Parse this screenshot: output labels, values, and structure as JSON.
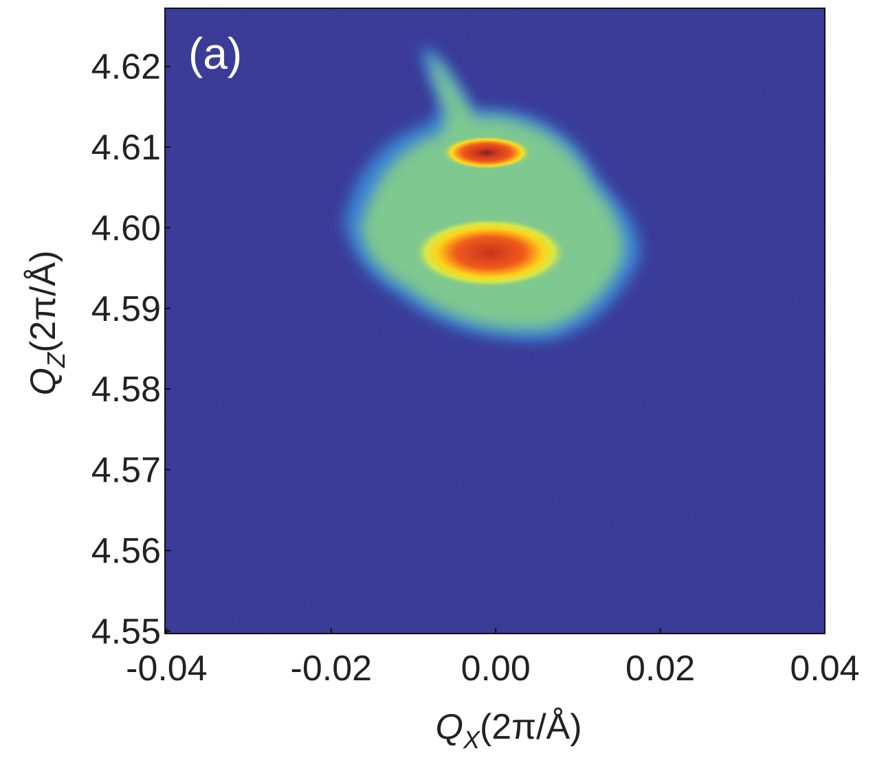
{
  "chart_data": {
    "type": "heatmap",
    "panel_label": "(a)",
    "xlabel": {
      "symbol": "Q",
      "sub": "X",
      "unit": "(2π/Å)"
    },
    "ylabel": {
      "symbol": "Q",
      "sub": "Z",
      "unit": "(2π/Å)"
    },
    "xlim": [
      -0.0402,
      0.04
    ],
    "ylim": [
      4.5497,
      4.6272
    ],
    "xticks": [
      -0.04,
      -0.02,
      {
        "value": 0,
        "label": "0.00"
      },
      0.02,
      0.04
    ],
    "yticks": [
      4.55,
      4.56,
      4.57,
      4.58,
      4.59,
      {
        "value": 4.6,
        "label": "4.60"
      },
      4.61,
      4.62
    ],
    "peaks": {
      "x": [
        -0.0011,
        -0.0007
      ],
      "y": [
        4.6093,
        4.5969
      ]
    },
    "background_color": "#2f2f8c"
  }
}
